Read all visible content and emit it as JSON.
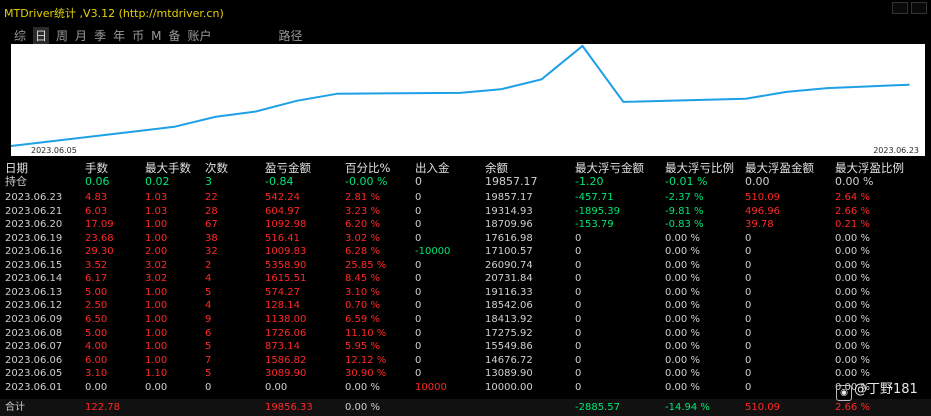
{
  "app": {
    "title": "MTDriver统计 ,V3.12 (http://mtdriver.cn)"
  },
  "tabs": [
    "综",
    "日",
    "周",
    "月",
    "季",
    "年",
    "币",
    "M",
    "备",
    "账户",
    "路径"
  ],
  "active_tab": "日",
  "chart": {
    "start_date": "2023.06.05",
    "end_date": "2023.06.23",
    "line_color": "#1ea0e6",
    "background": "#ffffff"
  },
  "chart_data": {
    "type": "line",
    "x": [
      "2023.06.01",
      "2023.06.05",
      "2023.06.06",
      "2023.06.07",
      "2023.06.08",
      "2023.06.09",
      "2023.06.12",
      "2023.06.13",
      "2023.06.14",
      "2023.06.15",
      "2023.06.16",
      "2023.06.19",
      "2023.06.20",
      "2023.06.21",
      "2023.06.23"
    ],
    "series": [
      {
        "values": [
          10000.0,
          13089.9,
          14676.72,
          15549.86,
          17275.92,
          18413.92,
          18542.06,
          19116.33,
          20731.84,
          26090.74,
          17100.57,
          17616.98,
          18709.96,
          19314.93,
          19857.17
        ]
      }
    ]
  },
  "table": {
    "headers": [
      "日期",
      "手数",
      "最大手数",
      "次数",
      "盈亏金额",
      "百分比%",
      "出入金",
      "余额",
      "最大浮亏金额",
      "最大浮亏比例",
      "最大浮盈金额",
      "最大浮盈比例"
    ],
    "position": {
      "label": "持仓",
      "lots": "0.06",
      "max_lots": "0.02",
      "count": "3",
      "pnl": "-0.84",
      "pct": "-0.00 %",
      "io": "0",
      "balance": "19857.17",
      "max_dd": "-1.20",
      "max_dd_pct": "-0.01 %",
      "max_fp": "0.00",
      "max_fp_pct": "0.00 %"
    },
    "rows": [
      {
        "date": "2023.06.23",
        "lots": "4.83",
        "max_lots": "1.03",
        "count": "22",
        "pnl": "542.24",
        "pct": "2.81 %",
        "io": "0",
        "balance": "19857.17",
        "max_dd": "-457.71",
        "max_dd_pct": "-2.37 %",
        "max_fp": "510.09",
        "max_fp_pct": "2.64 %"
      },
      {
        "date": "2023.06.21",
        "lots": "6.03",
        "max_lots": "1.03",
        "count": "28",
        "pnl": "604.97",
        "pct": "3.23 %",
        "io": "0",
        "balance": "19314.93",
        "max_dd": "-1895.39",
        "max_dd_pct": "-9.81 %",
        "max_fp": "496.96",
        "max_fp_pct": "2.66 %"
      },
      {
        "date": "2023.06.20",
        "lots": "17.09",
        "max_lots": "1.00",
        "count": "67",
        "pnl": "1092.98",
        "pct": "6.20 %",
        "io": "0",
        "balance": "18709.96",
        "max_dd": "-153.79",
        "max_dd_pct": "-0.83 %",
        "max_fp": "39.78",
        "max_fp_pct": "0.21 %"
      },
      {
        "date": "2023.06.19",
        "lots": "23.68",
        "max_lots": "1.00",
        "count": "38",
        "pnl": "516.41",
        "pct": "3.02 %",
        "io": "0",
        "balance": "17616.98",
        "max_dd": "0",
        "max_dd_pct": "0.00 %",
        "max_fp": "0",
        "max_fp_pct": "0.00 %"
      },
      {
        "date": "2023.06.16",
        "lots": "29.30",
        "max_lots": "2.00",
        "count": "32",
        "pnl": "1009.83",
        "pct": "6.28 %",
        "io": "-10000",
        "balance": "17100.57",
        "max_dd": "0",
        "max_dd_pct": "0.00 %",
        "max_fp": "0",
        "max_fp_pct": "0.00 %"
      },
      {
        "date": "2023.06.15",
        "lots": "3.52",
        "max_lots": "3.02",
        "count": "2",
        "pnl": "5358.90",
        "pct": "25.85 %",
        "io": "0",
        "balance": "26090.74",
        "max_dd": "0",
        "max_dd_pct": "0.00 %",
        "max_fp": "0",
        "max_fp_pct": "0.00 %"
      },
      {
        "date": "2023.06.14",
        "lots": "6.17",
        "max_lots": "3.02",
        "count": "4",
        "pnl": "1615.51",
        "pct": "8.45 %",
        "io": "0",
        "balance": "20731.84",
        "max_dd": "0",
        "max_dd_pct": "0.00 %",
        "max_fp": "0",
        "max_fp_pct": "0.00 %"
      },
      {
        "date": "2023.06.13",
        "lots": "5.00",
        "max_lots": "1.00",
        "count": "5",
        "pnl": "574.27",
        "pct": "3.10 %",
        "io": "0",
        "balance": "19116.33",
        "max_dd": "0",
        "max_dd_pct": "0.00 %",
        "max_fp": "0",
        "max_fp_pct": "0.00 %"
      },
      {
        "date": "2023.06.12",
        "lots": "2.50",
        "max_lots": "1.00",
        "count": "4",
        "pnl": "128.14",
        "pct": "0.70 %",
        "io": "0",
        "balance": "18542.06",
        "max_dd": "0",
        "max_dd_pct": "0.00 %",
        "max_fp": "0",
        "max_fp_pct": "0.00 %"
      },
      {
        "date": "2023.06.09",
        "lots": "6.50",
        "max_lots": "1.00",
        "count": "9",
        "pnl": "1138.00",
        "pct": "6.59 %",
        "io": "0",
        "balance": "18413.92",
        "max_dd": "0",
        "max_dd_pct": "0.00 %",
        "max_fp": "0",
        "max_fp_pct": "0.00 %"
      },
      {
        "date": "2023.06.08",
        "lots": "5.00",
        "max_lots": "1.00",
        "count": "6",
        "pnl": "1726.06",
        "pct": "11.10 %",
        "io": "0",
        "balance": "17275.92",
        "max_dd": "0",
        "max_dd_pct": "0.00 %",
        "max_fp": "0",
        "max_fp_pct": "0.00 %"
      },
      {
        "date": "2023.06.07",
        "lots": "4.00",
        "max_lots": "1.00",
        "count": "5",
        "pnl": "873.14",
        "pct": "5.95 %",
        "io": "0",
        "balance": "15549.86",
        "max_dd": "0",
        "max_dd_pct": "0.00 %",
        "max_fp": "0",
        "max_fp_pct": "0.00 %"
      },
      {
        "date": "2023.06.06",
        "lots": "6.00",
        "max_lots": "1.00",
        "count": "7",
        "pnl": "1586.82",
        "pct": "12.12 %",
        "io": "0",
        "balance": "14676.72",
        "max_dd": "0",
        "max_dd_pct": "0.00 %",
        "max_fp": "0",
        "max_fp_pct": "0.00 %"
      },
      {
        "date": "2023.06.05",
        "lots": "3.10",
        "max_lots": "1.10",
        "count": "5",
        "pnl": "3089.90",
        "pct": "30.90 %",
        "io": "0",
        "balance": "13089.90",
        "max_dd": "0",
        "max_dd_pct": "0.00 %",
        "max_fp": "0",
        "max_fp_pct": "0.00 %"
      },
      {
        "date": "2023.06.01",
        "lots": "0.00",
        "max_lots": "0.00",
        "count": "0",
        "pnl": "0.00",
        "pct": "0.00 %",
        "io": "10000",
        "balance": "10000.00",
        "max_dd": "0",
        "max_dd_pct": "0.00 %",
        "max_fp": "0",
        "max_fp_pct": "0.00 %"
      }
    ],
    "total": {
      "label": "合计",
      "lots": "122.78",
      "max_lots": "",
      "count": "",
      "pnl": "19856.33",
      "pct": "0.00 %",
      "io": "",
      "balance": "",
      "max_dd": "-2885.57",
      "max_dd_pct": "-14.94 %",
      "max_fp": "510.09",
      "max_fp_pct": "2.66 %"
    }
  },
  "colors": {
    "positive": "#00e676",
    "negative": "#ff2828",
    "title": "#e6d200"
  },
  "watermark": {
    "icon": "camera-icon",
    "text": "@丁野181"
  }
}
